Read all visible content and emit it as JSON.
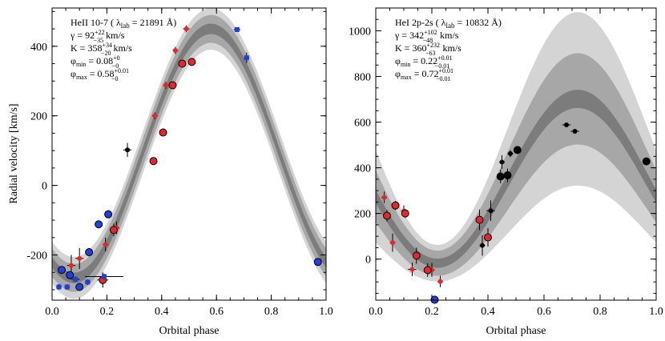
{
  "chart_data": [
    {
      "type": "scatter",
      "panel": "left",
      "xlabel": "Orbital phase",
      "ylabel": "Radial velocity [km/s]",
      "xlim": [
        0.0,
        1.0
      ],
      "ylim": [
        -330,
        510
      ],
      "xticks": [
        0.0,
        0.2,
        0.4,
        0.6,
        0.8,
        1.0
      ],
      "xtick_labels": [
        "0.0",
        "0.2",
        "0.4",
        "0.6",
        "0.8",
        "1.0"
      ],
      "yticks": [
        -200,
        0,
        200,
        400
      ],
      "ytick_labels": [
        "-200",
        "0",
        "200",
        "400"
      ],
      "legend": {
        "line1_prefix": "HeII 10-7 ( λ",
        "line1_sub": "lab",
        "line1_suffix": " = 21891 Å)",
        "gamma_name": "γ",
        "gamma_value": " = 92",
        "gamma_sup": "+22",
        "gamma_sub": "−35",
        "gamma_unit": " km/s",
        "k_name": "K",
        "k_value": " = 358",
        "k_sup": "+34",
        "k_sub": "−20",
        "k_unit": " km/s",
        "phimin_name": "φ",
        "phimin_sub": "min",
        "phimin_value": " = 0.08",
        "phimin_sup": "+0",
        "phimin_sub2": "−0",
        "phimax_name": "φ",
        "phimax_sub": "max",
        "phimax_value": " = 0.58",
        "phimax_sup": "+0.01",
        "phimax_sub2": "−0"
      },
      "model": {
        "gamma": 92,
        "K": 358,
        "phase_max": 0.58
      },
      "bands": [
        {
          "level": "outer",
          "color": "#d4d4d4",
          "half_width": [
            60,
            60
          ]
        },
        {
          "level": "middle",
          "color": "#a7a7a7",
          "half_width": [
            40,
            40
          ]
        },
        {
          "level": "inner",
          "color": "#7c7c7c",
          "half_width": [
            15,
            15
          ]
        }
      ],
      "series": [
        {
          "name": "black filled",
          "color": "#000000",
          "points": [
            {
              "x": 0.275,
              "y": 102,
              "xerr": 0.015,
              "yerr": 20
            }
          ]
        },
        {
          "name": "red filled",
          "color": "#e6262a",
          "points": [
            {
              "x": 0.07,
              "y": -230,
              "xerr": 0.015,
              "yerr": 30
            },
            {
              "x": 0.1,
              "y": -210,
              "xerr": 0.015,
              "yerr": 30
            },
            {
              "x": 0.195,
              "y": -170,
              "xerr": 0.01,
              "yerr": 20
            },
            {
              "x": 0.235,
              "y": -122,
              "xerr": 0.01,
              "yerr": 18
            },
            {
              "x": 0.375,
              "y": 200,
              "xerr": 0.01,
              "yerr": 10
            },
            {
              "x": 0.415,
              "y": 288,
              "xerr": 0.01,
              "yerr": 10
            },
            {
              "x": 0.45,
              "y": 388,
              "xerr": 0.01,
              "yerr": 10
            },
            {
              "x": 0.49,
              "y": 450,
              "xerr": 0.012,
              "yerr": 10
            }
          ]
        },
        {
          "name": "red circled",
          "color": "#e6262a",
          "points": [
            {
              "x": 0.185,
              "y": -272,
              "xerr": 0.02,
              "yerr": 22
            },
            {
              "x": 0.225,
              "y": -128,
              "xerr": 0.01,
              "yerr": 18
            },
            {
              "x": 0.37,
              "y": 70,
              "xerr": 0.01,
              "yerr": 10
            },
            {
              "x": 0.405,
              "y": 152,
              "xerr": 0.01,
              "yerr": 10
            },
            {
              "x": 0.44,
              "y": 288,
              "xerr": 0.01,
              "yerr": 10
            },
            {
              "x": 0.475,
              "y": 350,
              "xerr": 0.01,
              "yerr": 10
            },
            {
              "x": 0.51,
              "y": 355,
              "xerr": 0.012,
              "yerr": 10
            }
          ]
        },
        {
          "name": "blue filled",
          "color": "#1f3fe0",
          "points": [
            {
              "x": 0.025,
              "y": -292,
              "xerr": 0.01,
              "yerr": 8
            },
            {
              "x": 0.055,
              "y": -292,
              "xerr": 0.01,
              "yerr": 8
            },
            {
              "x": 0.085,
              "y": -270,
              "xerr": 0.015,
              "yerr": 8
            },
            {
              "x": 0.13,
              "y": -278,
              "xerr": 0.01,
              "yerr": 8
            },
            {
              "x": 0.19,
              "y": -262,
              "xerr": 0.07,
              "yerr": 8
            },
            {
              "x": 0.675,
              "y": 448,
              "xerr": 0.012,
              "yerr": 6
            },
            {
              "x": 0.71,
              "y": 367,
              "xerr": 0.01,
              "yerr": 15
            }
          ]
        },
        {
          "name": "blue circled",
          "color": "#1f3fe0",
          "points": [
            {
              "x": 0.035,
              "y": -243,
              "xerr": 0.01,
              "yerr": 10
            },
            {
              "x": 0.065,
              "y": -258,
              "xerr": 0.01,
              "yerr": 10
            },
            {
              "x": 0.1,
              "y": -292,
              "xerr": 0.01,
              "yerr": 10
            },
            {
              "x": 0.135,
              "y": -192,
              "xerr": 0.01,
              "yerr": 12
            },
            {
              "x": 0.17,
              "y": -112,
              "xerr": 0.01,
              "yerr": 10
            },
            {
              "x": 0.205,
              "y": -83,
              "xerr": 0.01,
              "yerr": 8
            },
            {
              "x": 0.97,
              "y": -220,
              "xerr": 0.01,
              "yerr": 6
            }
          ]
        }
      ]
    },
    {
      "type": "scatter",
      "panel": "right",
      "xlabel": "Orbital phase",
      "ylabel": "",
      "xlim": [
        0.0,
        1.0
      ],
      "ylim": [
        -180,
        1100
      ],
      "xticks": [
        0.0,
        0.2,
        0.4,
        0.6,
        0.8,
        1.0
      ],
      "xtick_labels": [
        "0.0",
        "0.2",
        "0.4",
        "0.6",
        "0.8",
        "1.0"
      ],
      "yticks": [
        0,
        200,
        400,
        600,
        800,
        1000
      ],
      "ytick_labels": [
        "0",
        "200",
        "400",
        "600",
        "800",
        "1000"
      ],
      "legend": {
        "line1_prefix": "HeI 2p-2s ( λ",
        "line1_sub": "lab",
        "line1_suffix": " = 10832 Å)",
        "gamma_name": "γ",
        "gamma_value": " = 342",
        "gamma_sup": "+102",
        "gamma_sub": "−48",
        "gamma_unit": " km/s",
        "k_name": "K",
        "k_value": " = 360",
        "k_sup": "+232",
        "k_sub": "−63",
        "k_unit": " km/s",
        "phimin_name": "φ",
        "phimin_sub": "min",
        "phimin_value": " = 0.22",
        "phimin_sup": "+0.01",
        "phimin_sub2": "−0.01",
        "phimax_name": "φ",
        "phimax_sub": "max",
        "phimax_value": " = 0.72",
        "phimax_sup": "+0.01",
        "phimax_sub2": "−0.01"
      },
      "model": {
        "gamma": 342,
        "K": 360,
        "phase_max": 0.72
      },
      "bands": [
        {
          "level": "outer",
          "color": "#d4d4d4",
          "half_width": [
            80,
            380
          ]
        },
        {
          "level": "middle",
          "color": "#a7a7a7",
          "half_width": [
            55,
            200
          ]
        },
        {
          "level": "inner",
          "color": "#7c7c7c",
          "half_width": [
            20,
            40
          ]
        }
      ],
      "series": [
        {
          "name": "black filled",
          "color": "#000000",
          "points": [
            {
              "x": 0.38,
              "y": 60,
              "xerr": 0.01,
              "yerr": 45
            },
            {
              "x": 0.41,
              "y": 212,
              "xerr": 0.015,
              "yerr": 45
            },
            {
              "x": 0.45,
              "y": 425,
              "xerr": 0.01,
              "yerr": 30
            },
            {
              "x": 0.48,
              "y": 462,
              "xerr": 0.01,
              "yerr": 15
            },
            {
              "x": 0.68,
              "y": 588,
              "xerr": 0.015,
              "yerr": 8
            },
            {
              "x": 0.71,
              "y": 560,
              "xerr": 0.015,
              "yerr": 10
            }
          ]
        },
        {
          "name": "black circled",
          "color": "#000000",
          "points": [
            {
              "x": 0.445,
              "y": 362,
              "xerr": 0.01,
              "yerr": 30
            },
            {
              "x": 0.47,
              "y": 367,
              "xerr": 0.01,
              "yerr": 30
            },
            {
              "x": 0.505,
              "y": 478,
              "xerr": 0.012,
              "yerr": 10
            },
            {
              "x": 0.965,
              "y": 428,
              "xerr": 0.01,
              "yerr": 10
            }
          ]
        },
        {
          "name": "red filled",
          "color": "#e6262a",
          "points": [
            {
              "x": 0.03,
              "y": 270,
              "xerr": 0.01,
              "yerr": 25
            },
            {
              "x": 0.06,
              "y": 72,
              "xerr": 0.01,
              "yerr": 40
            },
            {
              "x": 0.1,
              "y": 210,
              "xerr": 0.01,
              "yerr": 25
            },
            {
              "x": 0.13,
              "y": -45,
              "xerr": 0.015,
              "yerr": 30
            },
            {
              "x": 0.2,
              "y": -48,
              "xerr": 0.01,
              "yerr": 30
            },
            {
              "x": 0.23,
              "y": -98,
              "xerr": 0.01,
              "yerr": 25
            }
          ]
        },
        {
          "name": "red circled",
          "color": "#e6262a",
          "points": [
            {
              "x": 0.04,
              "y": 190,
              "xerr": 0.012,
              "yerr": 25
            },
            {
              "x": 0.07,
              "y": 235,
              "xerr": 0.01,
              "yerr": 20
            },
            {
              "x": 0.105,
              "y": 200,
              "xerr": 0.01,
              "yerr": 20
            },
            {
              "x": 0.145,
              "y": 15,
              "xerr": 0.01,
              "yerr": 35
            },
            {
              "x": 0.185,
              "y": -48,
              "xerr": 0.01,
              "yerr": 30
            },
            {
              "x": 0.37,
              "y": 172,
              "xerr": 0.01,
              "yerr": 45
            },
            {
              "x": 0.4,
              "y": 95,
              "xerr": 0.012,
              "yerr": 40
            }
          ]
        },
        {
          "name": "blue circled",
          "color": "#1f3fe0",
          "points": [
            {
              "x": 0.21,
              "y": -178,
              "xerr": 0.01,
              "yerr": 10
            }
          ]
        }
      ]
    }
  ]
}
